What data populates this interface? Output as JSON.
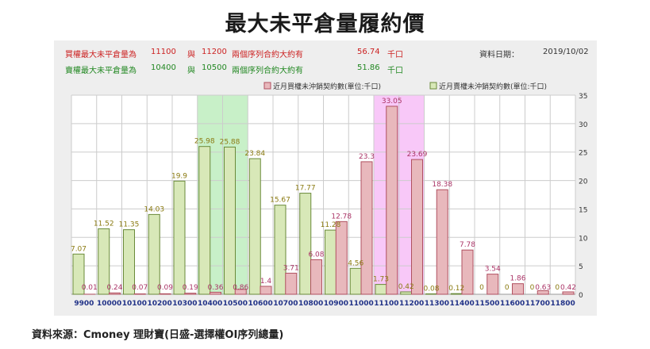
{
  "title": "最大未平倉量履約價",
  "summary": {
    "call": {
      "label": "買權最大未平倉量為",
      "strike1": "11100",
      "sep": "與",
      "strike2": "11200",
      "desc": "兩個序列合約大約有",
      "value": "56.74",
      "unit": "千口"
    },
    "put": {
      "label": "賣權最大未平倉量為",
      "strike1": "10400",
      "sep": "與",
      "strike2": "10500",
      "desc": "兩個序列合約大約有",
      "value": "51.86",
      "unit": "千口"
    },
    "date_label": "資料日期：",
    "date_value": "2019/10/02"
  },
  "source": "資料來源：Cmoney 理財寶(日盛-選擇權OI序列總量)",
  "colors": {
    "call_bar": "#e8b8bc",
    "call_stroke": "#b05060",
    "call_label": "#aa3366",
    "put_bar": "#d8e8b8",
    "put_stroke": "#6a8a3a",
    "put_label": "#8a7a10",
    "put_band": "#c8f0c8",
    "call_band": "#f8c8f8",
    "grid": "#cccccc"
  },
  "chart_data": {
    "type": "bar",
    "categories": [
      "9900",
      "10000",
      "10100",
      "10200",
      "10300",
      "10400",
      "10500",
      "10600",
      "10700",
      "10800",
      "10900",
      "11000",
      "11100",
      "11200",
      "11300",
      "11400",
      "11500",
      "11600",
      "11700",
      "11800"
    ],
    "series": [
      {
        "name": "近月賣權未沖銷契約數(單位:千口)",
        "values": [
          7.07,
          11.52,
          11.35,
          14.03,
          19.9,
          25.98,
          25.88,
          23.84,
          15.67,
          17.77,
          11.28,
          4.56,
          1.73,
          0.42,
          0.08,
          0.12,
          0,
          0,
          0,
          0
        ]
      },
      {
        "name": "近月買權未沖銷契約數(單位:千口)",
        "values": [
          0.01,
          0.24,
          0.07,
          0.09,
          0.19,
          0.36,
          0.86,
          1.4,
          3.71,
          6.08,
          12.78,
          23.3,
          33.05,
          23.69,
          18.38,
          7.78,
          3.54,
          1.86,
          0.63,
          0.42
        ]
      }
    ],
    "ylim": [
      0,
      35
    ],
    "yticks": [
      0,
      5,
      10,
      15,
      20,
      25,
      30,
      35
    ],
    "highlight_put": [
      "10400",
      "10500"
    ],
    "highlight_call": [
      "11100",
      "11200"
    ],
    "grid": true,
    "legend_position": "top-right"
  }
}
